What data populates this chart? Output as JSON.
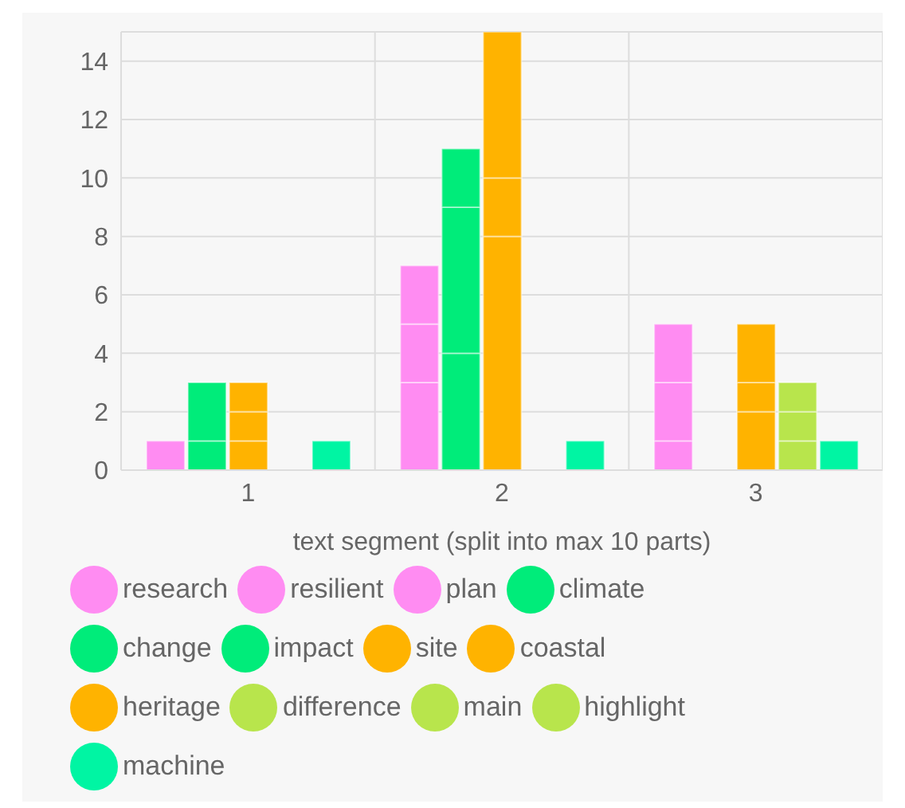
{
  "chart_data": {
    "type": "bar",
    "xlabel": "text segment (split into max 10 parts)",
    "categories": [
      "1",
      "2",
      "3"
    ],
    "series": [
      {
        "name": "research",
        "color": "#ff8cf2",
        "values": [
          1,
          3,
          1
        ],
        "base": [
          0,
          0,
          0
        ]
      },
      {
        "name": "resilient",
        "color": "#ff8cf2",
        "values": [
          null,
          2,
          2
        ],
        "base": [
          null,
          3,
          1
        ]
      },
      {
        "name": "plan",
        "color": "#ff8cf2",
        "values": [
          null,
          2,
          2
        ],
        "base": [
          null,
          5,
          3
        ]
      },
      {
        "name": "climate",
        "color": "#00ec7a",
        "values": [
          1,
          4,
          null
        ],
        "base": [
          0,
          0,
          null
        ]
      },
      {
        "name": "change",
        "color": "#00ec7a",
        "values": [
          2,
          5,
          null
        ],
        "base": [
          1,
          4,
          null
        ]
      },
      {
        "name": "impact",
        "color": "#00ec7a",
        "values": [
          null,
          2,
          null
        ],
        "base": [
          null,
          9,
          null
        ]
      },
      {
        "name": "site",
        "color": "#ffb300",
        "values": [
          1,
          8,
          2
        ],
        "base": [
          0,
          0,
          0
        ]
      },
      {
        "name": "coastal",
        "color": "#ffb300",
        "values": [
          1,
          2,
          1
        ],
        "base": [
          1,
          8,
          2
        ]
      },
      {
        "name": "heritage",
        "color": "#ffb300",
        "values": [
          1,
          5,
          2
        ],
        "base": [
          2,
          10,
          3
        ]
      },
      {
        "name": "difference",
        "color": "#b8e54c",
        "values": [
          null,
          null,
          1
        ],
        "base": [
          null,
          null,
          0
        ]
      },
      {
        "name": "main",
        "color": "#b8e54c",
        "values": [
          null,
          null,
          1
        ],
        "base": [
          null,
          null,
          1
        ]
      },
      {
        "name": "highlight",
        "color": "#b8e54c",
        "values": [
          null,
          null,
          1
        ],
        "base": [
          null,
          null,
          2
        ]
      },
      {
        "name": "machine",
        "color": "#00f5a3",
        "values": [
          1,
          1,
          1
        ],
        "base": [
          0,
          0,
          0
        ]
      }
    ],
    "ylim": [
      0,
      15
    ],
    "yticks": [
      0,
      2,
      4,
      6,
      8,
      10,
      12,
      14
    ],
    "grid": true,
    "legend": "bottom"
  }
}
